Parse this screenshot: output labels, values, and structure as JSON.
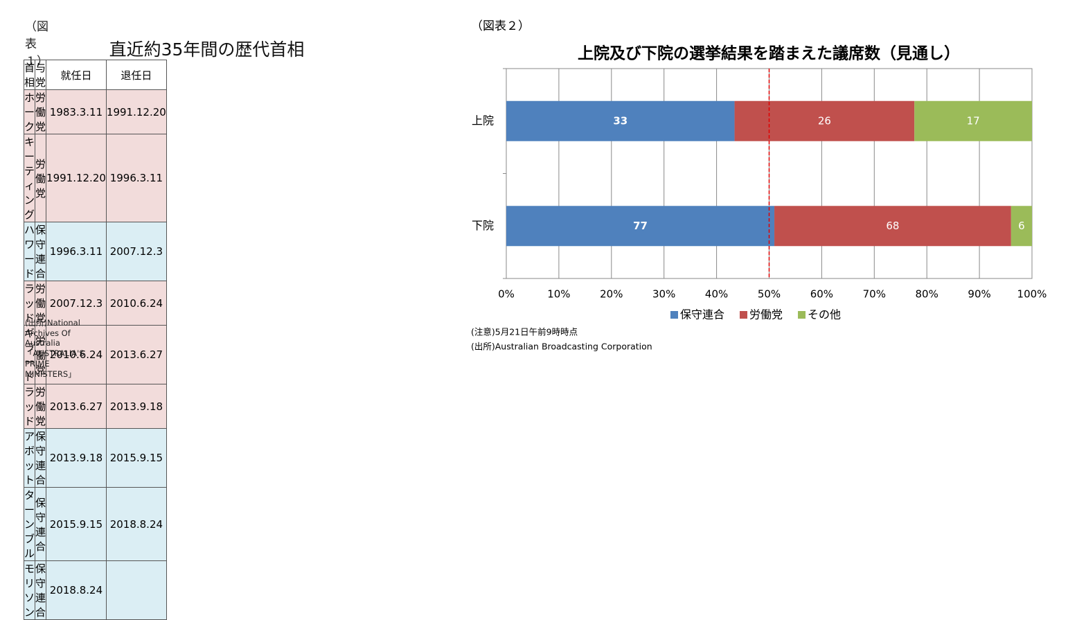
{
  "table": {
    "label": "（図表１）",
    "title": "直近約35年間の歴代首相",
    "header": [
      "首相",
      "与党",
      "就任日",
      "退任日"
    ],
    "rows": [
      {
        "cells": [
          "ホーク",
          "労働党",
          "1983.3.11",
          "1991.12.20"
        ],
        "color": "#f2dcdb"
      },
      {
        "cells": [
          "キーティング",
          "労働党",
          "1991.12.20",
          "1996.3.11"
        ],
        "color": "#f2dcdb"
      },
      {
        "cells": [
          "ハワード",
          "保守連合",
          "1996.3.11",
          "2007.12.3"
        ],
        "color": "#dbeef4"
      },
      {
        "cells": [
          "ラッド",
          "労働党",
          "2007.12.3",
          "2010.6.24"
        ],
        "color": "#f2dcdb"
      },
      {
        "cells": [
          "ギラード",
          "労働党",
          "2010.6.24",
          "2013.6.27"
        ],
        "color": "#f2dcdb"
      },
      {
        "cells": [
          "ラッド",
          "労働党",
          "2013.6.27",
          "2013.9.18"
        ],
        "color": "#f2dcdb"
      },
      {
        "cells": [
          "アボット",
          "保守連合",
          "2013.9.18",
          "2015.9.15"
        ],
        "color": "#dbeef4"
      },
      {
        "cells": [
          "ターンブル",
          "保守連合",
          "2015.9.15",
          "2018.8.24"
        ],
        "color": "#dbeef4"
      },
      {
        "cells": [
          "モリソン",
          "保守連合",
          "2018.8.24",
          null
        ],
        "color": "#dbeef4"
      }
    ],
    "source": "(出所)National Archives Of Australia「AUSTRALIA'S PRIME MINISTERS」"
  },
  "chart_data": {
    "type": "stacked_bar_percent",
    "label": "（図表２）",
    "title": "上院及び下院の選挙結果を踏まえた議席数（見通し）",
    "categories": [
      "上院",
      "下院"
    ],
    "series": [
      {
        "name": "保守連合",
        "color": "#4f81bd",
        "values": [
          33,
          77
        ]
      },
      {
        "name": "労働党",
        "color": "#c0504d",
        "values": [
          26,
          68
        ]
      },
      {
        "name": "その他",
        "color": "#9bbb59",
        "values": [
          17,
          6
        ]
      }
    ],
    "xlim": [
      0,
      100
    ],
    "xticks": [
      {
        "value": 0,
        "label": "0%"
      },
      {
        "value": 10,
        "label": "10%"
      },
      {
        "value": 20,
        "label": "20%"
      },
      {
        "value": 30,
        "label": "30%"
      },
      {
        "value": 40,
        "label": "40%"
      },
      {
        "value": 50,
        "label": "50%"
      },
      {
        "value": 60,
        "label": "60%"
      },
      {
        "value": 70,
        "label": "70%"
      },
      {
        "value": 80,
        "label": "80%"
      },
      {
        "value": 90,
        "label": "90%"
      },
      {
        "value": 100,
        "label": "100%"
      }
    ],
    "reference_line": {
      "value": 50,
      "color": "#e00000"
    },
    "grid": true,
    "legend": "bottom",
    "notes": [
      "(注意)5月21日午前9時時点",
      "(出所)Australian Broadcasting Corporation"
    ]
  }
}
